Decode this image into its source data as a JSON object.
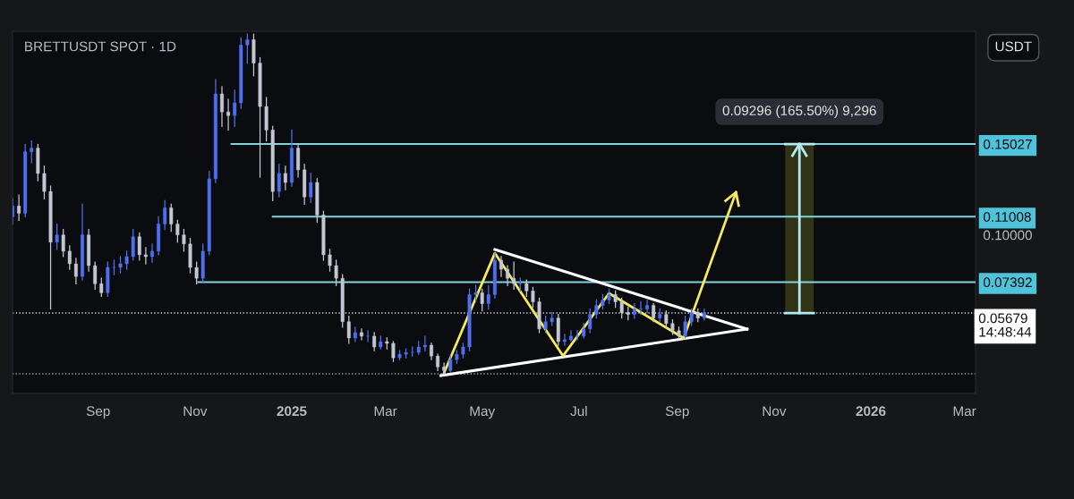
{
  "chart_data": {
    "type": "candlestick",
    "title": "BRETTUSDT SPOT · 1D",
    "x": [
      "2024-07-09",
      "2024-07-13",
      "2024-07-17",
      "2024-07-21",
      "2024-07-25",
      "2024-07-29",
      "2024-08-02",
      "2024-08-06",
      "2024-08-10",
      "2024-08-14",
      "2024-08-18",
      "2024-08-22",
      "2024-08-26",
      "2024-08-30",
      "2024-09-03",
      "2024-09-07",
      "2024-09-11",
      "2024-09-15",
      "2024-09-19",
      "2024-09-23",
      "2024-09-27",
      "2024-10-01",
      "2024-10-05",
      "2024-10-09",
      "2024-10-13",
      "2024-10-17",
      "2024-10-21",
      "2024-10-25",
      "2024-10-29",
      "2024-11-02",
      "2024-11-06",
      "2024-11-10",
      "2024-11-14",
      "2024-11-18",
      "2024-11-22",
      "2024-11-26",
      "2024-11-30",
      "2024-12-04",
      "2024-12-08",
      "2024-12-12",
      "2024-12-16",
      "2024-12-20",
      "2024-12-24",
      "2024-12-28",
      "2025-01-01",
      "2025-01-05",
      "2025-01-09",
      "2025-01-13",
      "2025-01-17",
      "2025-01-21",
      "2025-01-25",
      "2025-01-29",
      "2025-02-02",
      "2025-02-06",
      "2025-02-10",
      "2025-02-14",
      "2025-02-18",
      "2025-02-22",
      "2025-02-26",
      "2025-03-02",
      "2025-03-06",
      "2025-03-10",
      "2025-03-14",
      "2025-03-18",
      "2025-03-22",
      "2025-03-26",
      "2025-03-30",
      "2025-04-03",
      "2025-04-07",
      "2025-04-11",
      "2025-04-15",
      "2025-04-19",
      "2025-04-23",
      "2025-04-27",
      "2025-05-01",
      "2025-05-05",
      "2025-05-09",
      "2025-05-13",
      "2025-05-17",
      "2025-05-21",
      "2025-05-25",
      "2025-05-29",
      "2025-06-02",
      "2025-06-06",
      "2025-06-10",
      "2025-06-14",
      "2025-06-18",
      "2025-06-22",
      "2025-06-26",
      "2025-06-30",
      "2025-07-04",
      "2025-07-08",
      "2025-07-12",
      "2025-07-16",
      "2025-07-20",
      "2025-07-24",
      "2025-07-28",
      "2025-08-01",
      "2025-08-05",
      "2025-08-09",
      "2025-08-13",
      "2025-08-17",
      "2025-08-21",
      "2025-08-25",
      "2025-08-29",
      "2025-09-02",
      "2025-09-06",
      "2025-09-10",
      "2025-09-14",
      "2025-09-18"
    ],
    "ohlc": [
      [
        0.11,
        0.12,
        0.106,
        0.116
      ],
      [
        0.116,
        0.122,
        0.108,
        0.112
      ],
      [
        0.112,
        0.15,
        0.11,
        0.146
      ],
      [
        0.146,
        0.152,
        0.14,
        0.148
      ],
      [
        0.148,
        0.15,
        0.13,
        0.134
      ],
      [
        0.134,
        0.138,
        0.12,
        0.124
      ],
      [
        0.124,
        0.127,
        0.059,
        0.096
      ],
      [
        0.096,
        0.106,
        0.092,
        0.1
      ],
      [
        0.1,
        0.103,
        0.088,
        0.091
      ],
      [
        0.091,
        0.094,
        0.081,
        0.084
      ],
      [
        0.084,
        0.087,
        0.073,
        0.077
      ],
      [
        0.077,
        0.117,
        0.075,
        0.1
      ],
      [
        0.1,
        0.103,
        0.08,
        0.083
      ],
      [
        0.083,
        0.085,
        0.07,
        0.073
      ],
      [
        0.073,
        0.076,
        0.066,
        0.068
      ],
      [
        0.068,
        0.085,
        0.066,
        0.082
      ],
      [
        0.082,
        0.086,
        0.078,
        0.082
      ],
      [
        0.082,
        0.088,
        0.079,
        0.084
      ],
      [
        0.084,
        0.091,
        0.081,
        0.088
      ],
      [
        0.088,
        0.103,
        0.086,
        0.099
      ],
      [
        0.099,
        0.101,
        0.086,
        0.089
      ],
      [
        0.089,
        0.093,
        0.084,
        0.088
      ],
      [
        0.088,
        0.095,
        0.085,
        0.091
      ],
      [
        0.091,
        0.11,
        0.089,
        0.106
      ],
      [
        0.106,
        0.119,
        0.103,
        0.115
      ],
      [
        0.115,
        0.117,
        0.102,
        0.106
      ],
      [
        0.106,
        0.108,
        0.096,
        0.1
      ],
      [
        0.1,
        0.103,
        0.091,
        0.095
      ],
      [
        0.095,
        0.098,
        0.079,
        0.082
      ],
      [
        0.082,
        0.085,
        0.073,
        0.076
      ],
      [
        0.076,
        0.095,
        0.074,
        0.091
      ],
      [
        0.091,
        0.135,
        0.089,
        0.131
      ],
      [
        0.131,
        0.186,
        0.129,
        0.178
      ],
      [
        0.178,
        0.182,
        0.16,
        0.168
      ],
      [
        0.168,
        0.175,
        0.158,
        0.166
      ],
      [
        0.166,
        0.18,
        0.16,
        0.173
      ],
      [
        0.173,
        0.209,
        0.17,
        0.205
      ],
      [
        0.205,
        0.211,
        0.195,
        0.208
      ],
      [
        0.208,
        0.211,
        0.188,
        0.195
      ],
      [
        0.195,
        0.198,
        0.132,
        0.171
      ],
      [
        0.171,
        0.176,
        0.152,
        0.158
      ],
      [
        0.158,
        0.16,
        0.119,
        0.124
      ],
      [
        0.124,
        0.139,
        0.121,
        0.134
      ],
      [
        0.134,
        0.138,
        0.125,
        0.129
      ],
      [
        0.129,
        0.158,
        0.127,
        0.148
      ],
      [
        0.148,
        0.15,
        0.132,
        0.136
      ],
      [
        0.136,
        0.139,
        0.117,
        0.121
      ],
      [
        0.121,
        0.134,
        0.118,
        0.129
      ],
      [
        0.129,
        0.131,
        0.107,
        0.111
      ],
      [
        0.111,
        0.113,
        0.086,
        0.089
      ],
      [
        0.089,
        0.092,
        0.08,
        0.083
      ],
      [
        0.083,
        0.086,
        0.072,
        0.076
      ],
      [
        0.076,
        0.078,
        0.049,
        0.052
      ],
      [
        0.052,
        0.055,
        0.04,
        0.043
      ],
      [
        0.043,
        0.049,
        0.041,
        0.046
      ],
      [
        0.046,
        0.048,
        0.042,
        0.044
      ],
      [
        0.044,
        0.047,
        0.041,
        0.044
      ],
      [
        0.044,
        0.046,
        0.036,
        0.038
      ],
      [
        0.038,
        0.044,
        0.037,
        0.041
      ],
      [
        0.041,
        0.043,
        0.037,
        0.04
      ],
      [
        0.04,
        0.041,
        0.03,
        0.032
      ],
      [
        0.032,
        0.036,
        0.031,
        0.034
      ],
      [
        0.034,
        0.037,
        0.032,
        0.035
      ],
      [
        0.035,
        0.038,
        0.033,
        0.035
      ],
      [
        0.035,
        0.041,
        0.034,
        0.038
      ],
      [
        0.038,
        0.044,
        0.036,
        0.039
      ],
      [
        0.039,
        0.04,
        0.031,
        0.033
      ],
      [
        0.033,
        0.034,
        0.025,
        0.027
      ],
      [
        0.027,
        0.029,
        0.023,
        0.025
      ],
      [
        0.025,
        0.033,
        0.024,
        0.031
      ],
      [
        0.031,
        0.036,
        0.029,
        0.034
      ],
      [
        0.034,
        0.04,
        0.032,
        0.038
      ],
      [
        0.038,
        0.07,
        0.036,
        0.067
      ],
      [
        0.067,
        0.072,
        0.063,
        0.068
      ],
      [
        0.068,
        0.07,
        0.058,
        0.062
      ],
      [
        0.062,
        0.072,
        0.059,
        0.067
      ],
      [
        0.067,
        0.09,
        0.065,
        0.086
      ],
      [
        0.086,
        0.088,
        0.077,
        0.081
      ],
      [
        0.081,
        0.083,
        0.072,
        0.076
      ],
      [
        0.076,
        0.085,
        0.07,
        0.073
      ],
      [
        0.073,
        0.076,
        0.069,
        0.073
      ],
      [
        0.073,
        0.075,
        0.066,
        0.069
      ],
      [
        0.069,
        0.071,
        0.06,
        0.063
      ],
      [
        0.063,
        0.065,
        0.046,
        0.048
      ],
      [
        0.048,
        0.055,
        0.046,
        0.052
      ],
      [
        0.052,
        0.057,
        0.05,
        0.054
      ],
      [
        0.054,
        0.056,
        0.039,
        0.041
      ],
      [
        0.041,
        0.045,
        0.039,
        0.042
      ],
      [
        0.042,
        0.047,
        0.041,
        0.044
      ],
      [
        0.044,
        0.047,
        0.042,
        0.044
      ],
      [
        0.044,
        0.051,
        0.043,
        0.048
      ],
      [
        0.048,
        0.059,
        0.046,
        0.056
      ],
      [
        0.056,
        0.064,
        0.054,
        0.061
      ],
      [
        0.061,
        0.067,
        0.059,
        0.064
      ],
      [
        0.064,
        0.07,
        0.062,
        0.067
      ],
      [
        0.067,
        0.069,
        0.06,
        0.063
      ],
      [
        0.063,
        0.065,
        0.054,
        0.057
      ],
      [
        0.057,
        0.06,
        0.053,
        0.056
      ],
      [
        0.056,
        0.062,
        0.054,
        0.059
      ],
      [
        0.059,
        0.063,
        0.056,
        0.059
      ],
      [
        0.059,
        0.064,
        0.057,
        0.061
      ],
      [
        0.061,
        0.062,
        0.052,
        0.054
      ],
      [
        0.054,
        0.059,
        0.052,
        0.056
      ],
      [
        0.056,
        0.058,
        0.049,
        0.051
      ],
      [
        0.051,
        0.053,
        0.045,
        0.047
      ],
      [
        0.047,
        0.049,
        0.043,
        0.044
      ],
      [
        0.044,
        0.055,
        0.043,
        0.052
      ],
      [
        0.052,
        0.059,
        0.05,
        0.057
      ],
      [
        0.057,
        0.059,
        0.052,
        0.054
      ],
      [
        0.054,
        0.059,
        0.053,
        0.05679
      ]
    ],
    "colors": [
      "#4f6ff0",
      "#c3c7d1",
      "#4f6ff0",
      "#4f6ff0",
      "#c3c7d1",
      "#c3c7d1",
      "#c3c7d1",
      "#4f6ff0",
      "#c3c7d1",
      "#c3c7d1",
      "#c3c7d1",
      "#4f6ff0",
      "#c3c7d1",
      "#c3c7d1",
      "#c3c7d1",
      "#4f6ff0",
      "#4f6ff0",
      "#4f6ff0",
      "#4f6ff0",
      "#4f6ff0",
      "#c3c7d1",
      "#c3c7d1",
      "#4f6ff0",
      "#4f6ff0",
      "#4f6ff0",
      "#c3c7d1",
      "#c3c7d1",
      "#c3c7d1",
      "#c3c7d1",
      "#c3c7d1",
      "#4f6ff0",
      "#4f6ff0",
      "#4f6ff0",
      "#c3c7d1",
      "#c3c7d1",
      "#4f6ff0",
      "#4f6ff0",
      "#4f6ff0",
      "#c3c7d1",
      "#c3c7d1",
      "#c3c7d1",
      "#c3c7d1",
      "#4f6ff0",
      "#c3c7d1",
      "#4f6ff0",
      "#c3c7d1",
      "#c3c7d1",
      "#4f6ff0",
      "#c3c7d1",
      "#c3c7d1",
      "#c3c7d1",
      "#c3c7d1",
      "#c3c7d1",
      "#c3c7d1",
      "#4f6ff0",
      "#c3c7d1",
      "#4f6ff0",
      "#c3c7d1",
      "#4f6ff0",
      "#c3c7d1",
      "#c3c7d1",
      "#4f6ff0",
      "#4f6ff0",
      "#4f6ff0",
      "#4f6ff0",
      "#4f6ff0",
      "#c3c7d1",
      "#c3c7d1",
      "#c3c7d1",
      "#4f6ff0",
      "#4f6ff0",
      "#4f6ff0",
      "#4f6ff0",
      "#4f6ff0",
      "#c3c7d1",
      "#4f6ff0",
      "#4f6ff0",
      "#c3c7d1",
      "#c3c7d1",
      "#c3c7d1",
      "#4f6ff0",
      "#c3c7d1",
      "#c3c7d1",
      "#c3c7d1",
      "#4f6ff0",
      "#4f6ff0",
      "#c3c7d1",
      "#4f6ff0",
      "#4f6ff0",
      "#4f6ff0",
      "#4f6ff0",
      "#4f6ff0",
      "#4f6ff0",
      "#4f6ff0",
      "#4f6ff0",
      "#c3c7d1",
      "#c3c7d1",
      "#c3c7d1",
      "#4f6ff0",
      "#4f6ff0",
      "#4f6ff0",
      "#c3c7d1",
      "#4f6ff0",
      "#c3c7d1",
      "#c3c7d1",
      "#c3c7d1",
      "#4f6ff0",
      "#4f6ff0",
      "#c3c7d1",
      "#4f6ff0"
    ],
    "xlim": [
      "2024-07-09",
      "2026-03-08"
    ],
    "ylim": [
      0.0123,
      0.2126
    ],
    "xticks": [
      {
        "value": "2024-09-01",
        "label": "Sep"
      },
      {
        "value": "2024-11-01",
        "label": "Nov"
      },
      {
        "value": "2025-01-01",
        "label": "2025"
      },
      {
        "value": "2025-03-01",
        "label": "Mar"
      },
      {
        "value": "2025-05-01",
        "label": "May"
      },
      {
        "value": "2025-07-01",
        "label": "Jul"
      },
      {
        "value": "2025-09-01",
        "label": "Sep"
      },
      {
        "value": "2025-11-01",
        "label": "Nov"
      },
      {
        "value": "2026-01-01",
        "label": "2026"
      },
      {
        "value": "2026-03-01",
        "label": "Mar"
      }
    ],
    "yticks": [
      {
        "value": 0.07392,
        "label": "0.07392"
      },
      {
        "value": 0.1,
        "label": "0.10000"
      },
      {
        "value": 0.11008,
        "label": "0.11008"
      },
      {
        "value": 0.15027,
        "label": "0.15027"
      }
    ],
    "series": [
      {
        "type": "line",
        "x": [
          "2024-11-24",
          "2026-03-08"
        ],
        "values": [
          0.15027,
          0.15027
        ],
        "color": "#7fd3df"
      },
      {
        "type": "line",
        "x": [
          "2024-12-20",
          "2026-03-08"
        ],
        "values": [
          0.11008,
          0.11008
        ],
        "color": "#7fd3df"
      },
      {
        "type": "line",
        "x": [
          "2024-11-03",
          "2026-03-08"
        ],
        "values": [
          0.07392,
          0.07392
        ],
        "color": "#7fd3df"
      },
      {
        "type": "line",
        "x": [
          "2025-04-05",
          "2025-10-15"
        ],
        "values": [
          0.0222,
          0.0479
        ],
        "color": "#ffffff"
      },
      {
        "type": "line",
        "x": [
          "2025-05-09",
          "2025-10-15"
        ],
        "values": [
          0.0919,
          0.0479
        ],
        "color": "#ffffff"
      },
      {
        "type": "line",
        "x": [
          "2025-04-07",
          "2025-05-09",
          "2025-06-21",
          "2025-07-20",
          "2025-09-05",
          "2025-10-08"
        ],
        "values": [
          0.0237,
          0.0899,
          0.0331,
          0.0677,
          0.0429,
          0.1236
        ],
        "color": "#f5ea5a"
      },
      {
        "type": "line",
        "x": [
          "2025-11-17",
          "2025-11-17"
        ],
        "values": [
          0.05679,
          0.15027
        ],
        "color": "#b2ebf2"
      }
    ],
    "ref_lines": [
      {
        "axis": "y",
        "value": 0.05679,
        "label": "0.05679\n14:48:44",
        "color": "#d0d0d0",
        "line_style": "dotted"
      },
      {
        "axis": "y",
        "value": 0.0232,
        "color": "#9a9a9a",
        "line_style": "dotted"
      }
    ],
    "annotations": [
      {
        "text": "0.09296 (165.50%) 9,296",
        "x": "2025-11-17",
        "y": 0.15027
      },
      "USDT"
    ],
    "grid": false,
    "legend": false
  }
}
